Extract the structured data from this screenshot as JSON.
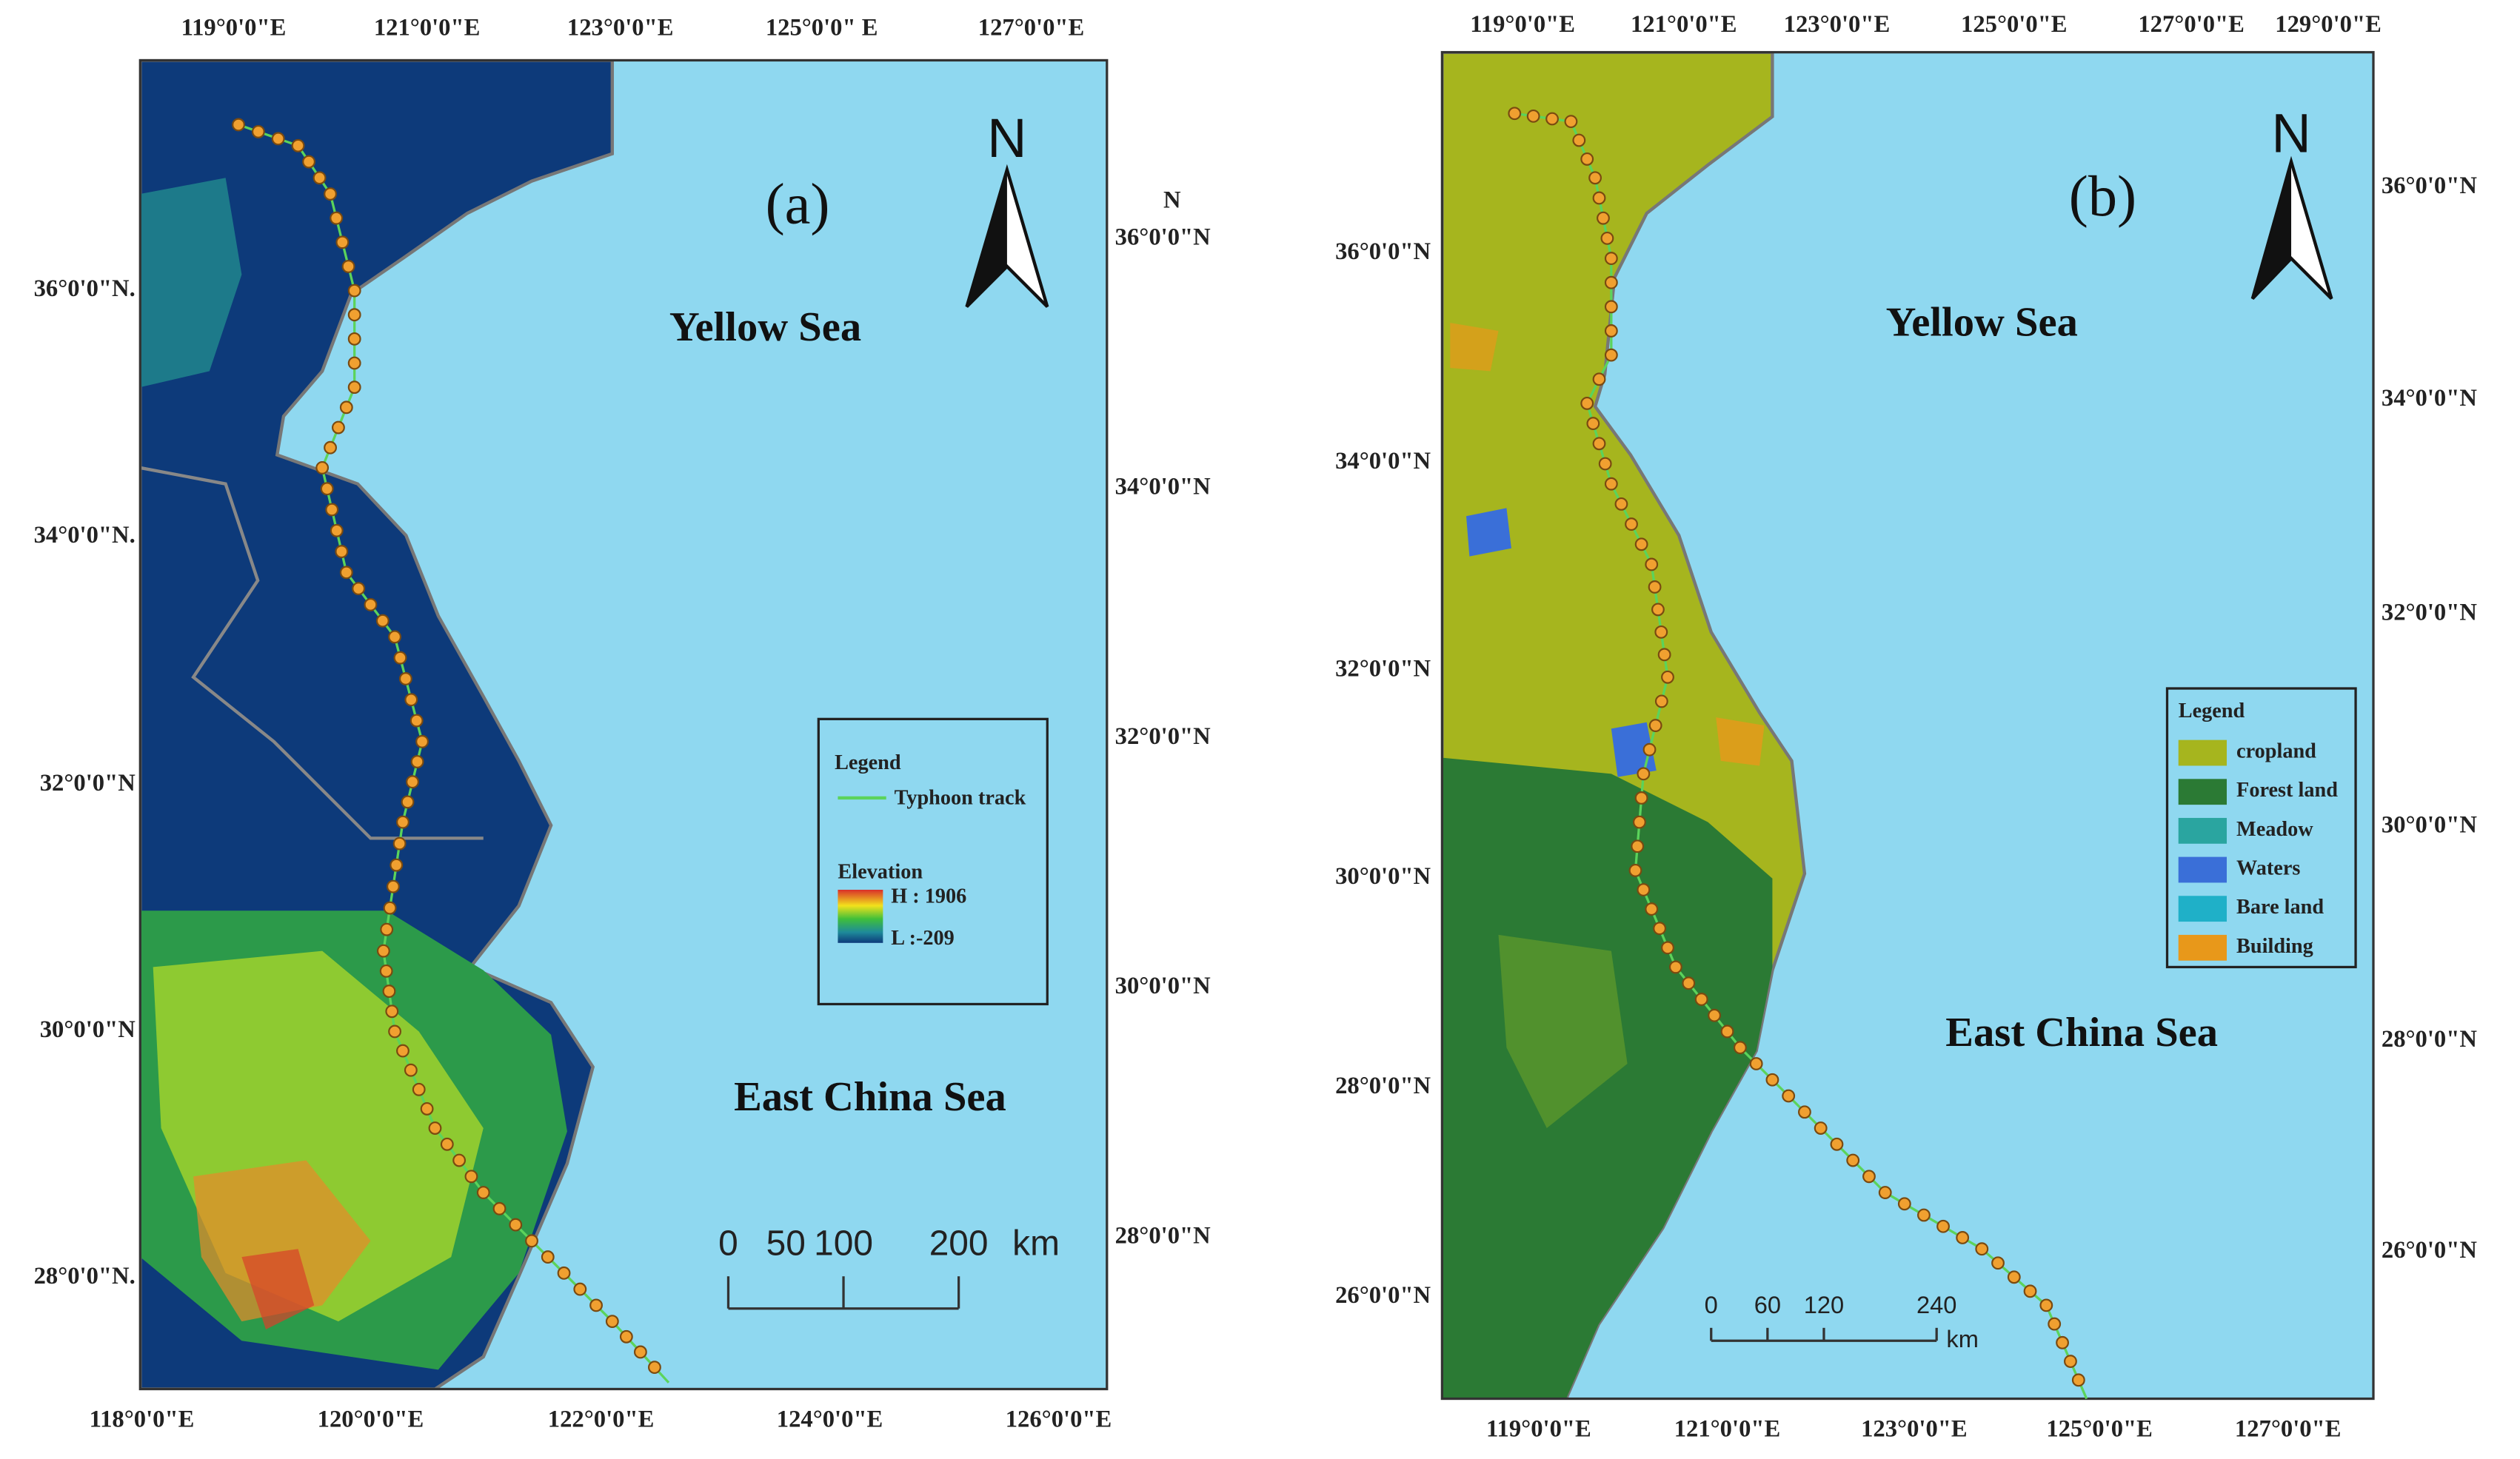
{
  "panels": [
    {
      "label": "(a)",
      "north": "N",
      "seas": [
        "Yellow Sea",
        "East China Sea"
      ],
      "top_ticks": [
        "119°0'0\"E",
        "121°0'0\"E",
        "123°0'0\"E",
        "125°0'0\" E",
        "127°0'0\"E"
      ],
      "bottom_ticks": [
        "118°0'0\"E",
        "120°0'0\"E",
        "122°0'0\"E",
        "124°0'0\"E",
        "126°0'0\"E"
      ],
      "left_ticks": [
        "36°0'0\"N.",
        "34°0'0\"N.",
        "32°0'0\"N",
        "30°0'0\"N",
        "28°0'0\"N."
      ],
      "right_ticks": [
        "N",
        "36°0'0\"N",
        "34°0'0\"N",
        "32°0'0\"N",
        "30°0'0\"N",
        "28°0'0\"N"
      ],
      "legend": {
        "title": "Legend",
        "track": "Typhoon track",
        "elevation": "Elevation",
        "high": "H : 1906",
        "low": "L :-209"
      },
      "scale_bar": {
        "labels": [
          0,
          50,
          100,
          200
        ],
        "unit": "km"
      }
    },
    {
      "label": "(b)",
      "north": "N",
      "seas": [
        "Yellow Sea",
        "East China Sea"
      ],
      "top_ticks": [
        "119°0'0\"E",
        "121°0'0\"E",
        "123°0'0\"E",
        "125°0'0\"E",
        "127°0'0\"E",
        "129°0'0\"E"
      ],
      "bottom_ticks": [
        "119°0'0\"E",
        "121°0'0\"E",
        "123°0'0\"E",
        "125°0'0\"E",
        "127°0'0\"E"
      ],
      "left_ticks": [
        "36°0'0\"N",
        "34°0'0\"N",
        "32°0'0\"N",
        "30°0'0\"N",
        "28°0'0\"N",
        "26°0'0\"N"
      ],
      "right_ticks": [
        "36°0'0\"N",
        "34°0'0\"N",
        "32°0'0\"N",
        "30°0'0\"N",
        "28°0'0\"N",
        "26°0'0\"N"
      ],
      "legend": {
        "title": "Legend",
        "items": [
          {
            "name": "cropland",
            "color": "#a6b51e"
          },
          {
            "name": "Forest land",
            "color": "#2b7a34"
          },
          {
            "name": "Meadow",
            "color": "#2aa5a0"
          },
          {
            "name": "Waters",
            "color": "#3a6fd8"
          },
          {
            "name": "Bare land",
            "color": "#1fb0c8"
          },
          {
            "name": "Building",
            "color": "#e8981a"
          }
        ]
      },
      "scale_bar": {
        "labels": [
          0,
          60,
          120,
          240
        ],
        "unit": "km"
      }
    }
  ]
}
